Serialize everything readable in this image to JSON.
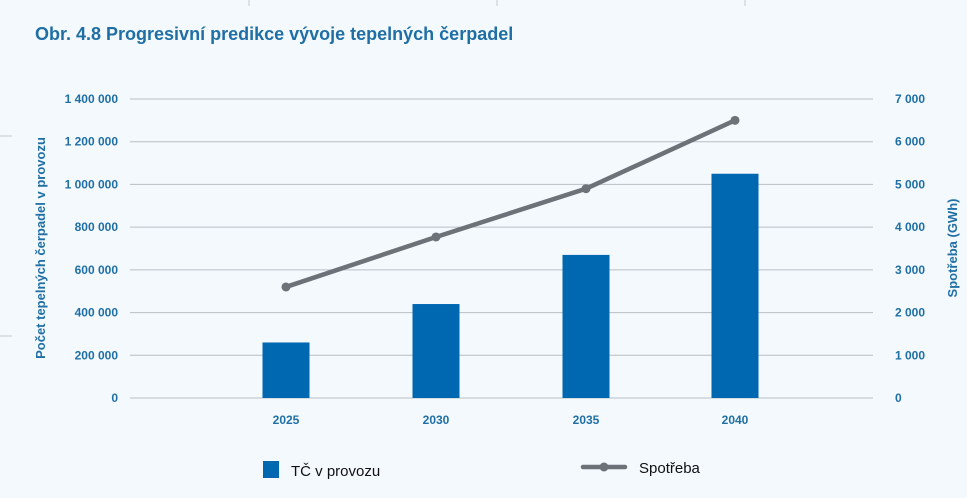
{
  "chart_data": {
    "type": "bar",
    "title": "Obr. 4.8 Progresivní predikce vývoje tepelných čerpadel",
    "categories": [
      "2025",
      "2030",
      "2035",
      "2040"
    ],
    "series": [
      {
        "name": "TČ v provozu",
        "type": "bar",
        "axis": "left",
        "values": [
          260000,
          440000,
          670000,
          1050000
        ],
        "color": "#0068b1"
      },
      {
        "name": "Spotřeba",
        "type": "line",
        "axis": "right",
        "values": [
          2600,
          3770,
          4900,
          6500
        ],
        "color": "#6d7278"
      }
    ],
    "ylabel": "Počet tepelných čerpadel v provozu",
    "y2label": "Spotřeba (GWh)",
    "ylim": [
      0,
      1400000
    ],
    "y2lim": [
      0,
      7000
    ],
    "yticks": [
      "0",
      "200 000",
      "400 000",
      "600 000",
      "800 000",
      "1 000 000",
      "1 200 000",
      "1 400 000"
    ],
    "y2ticks": [
      "0",
      "1 000",
      "2 000",
      "3 000",
      "4 000",
      "5 000",
      "6 000",
      "7 000"
    ],
    "grid": true,
    "legend_position": "bottom"
  }
}
